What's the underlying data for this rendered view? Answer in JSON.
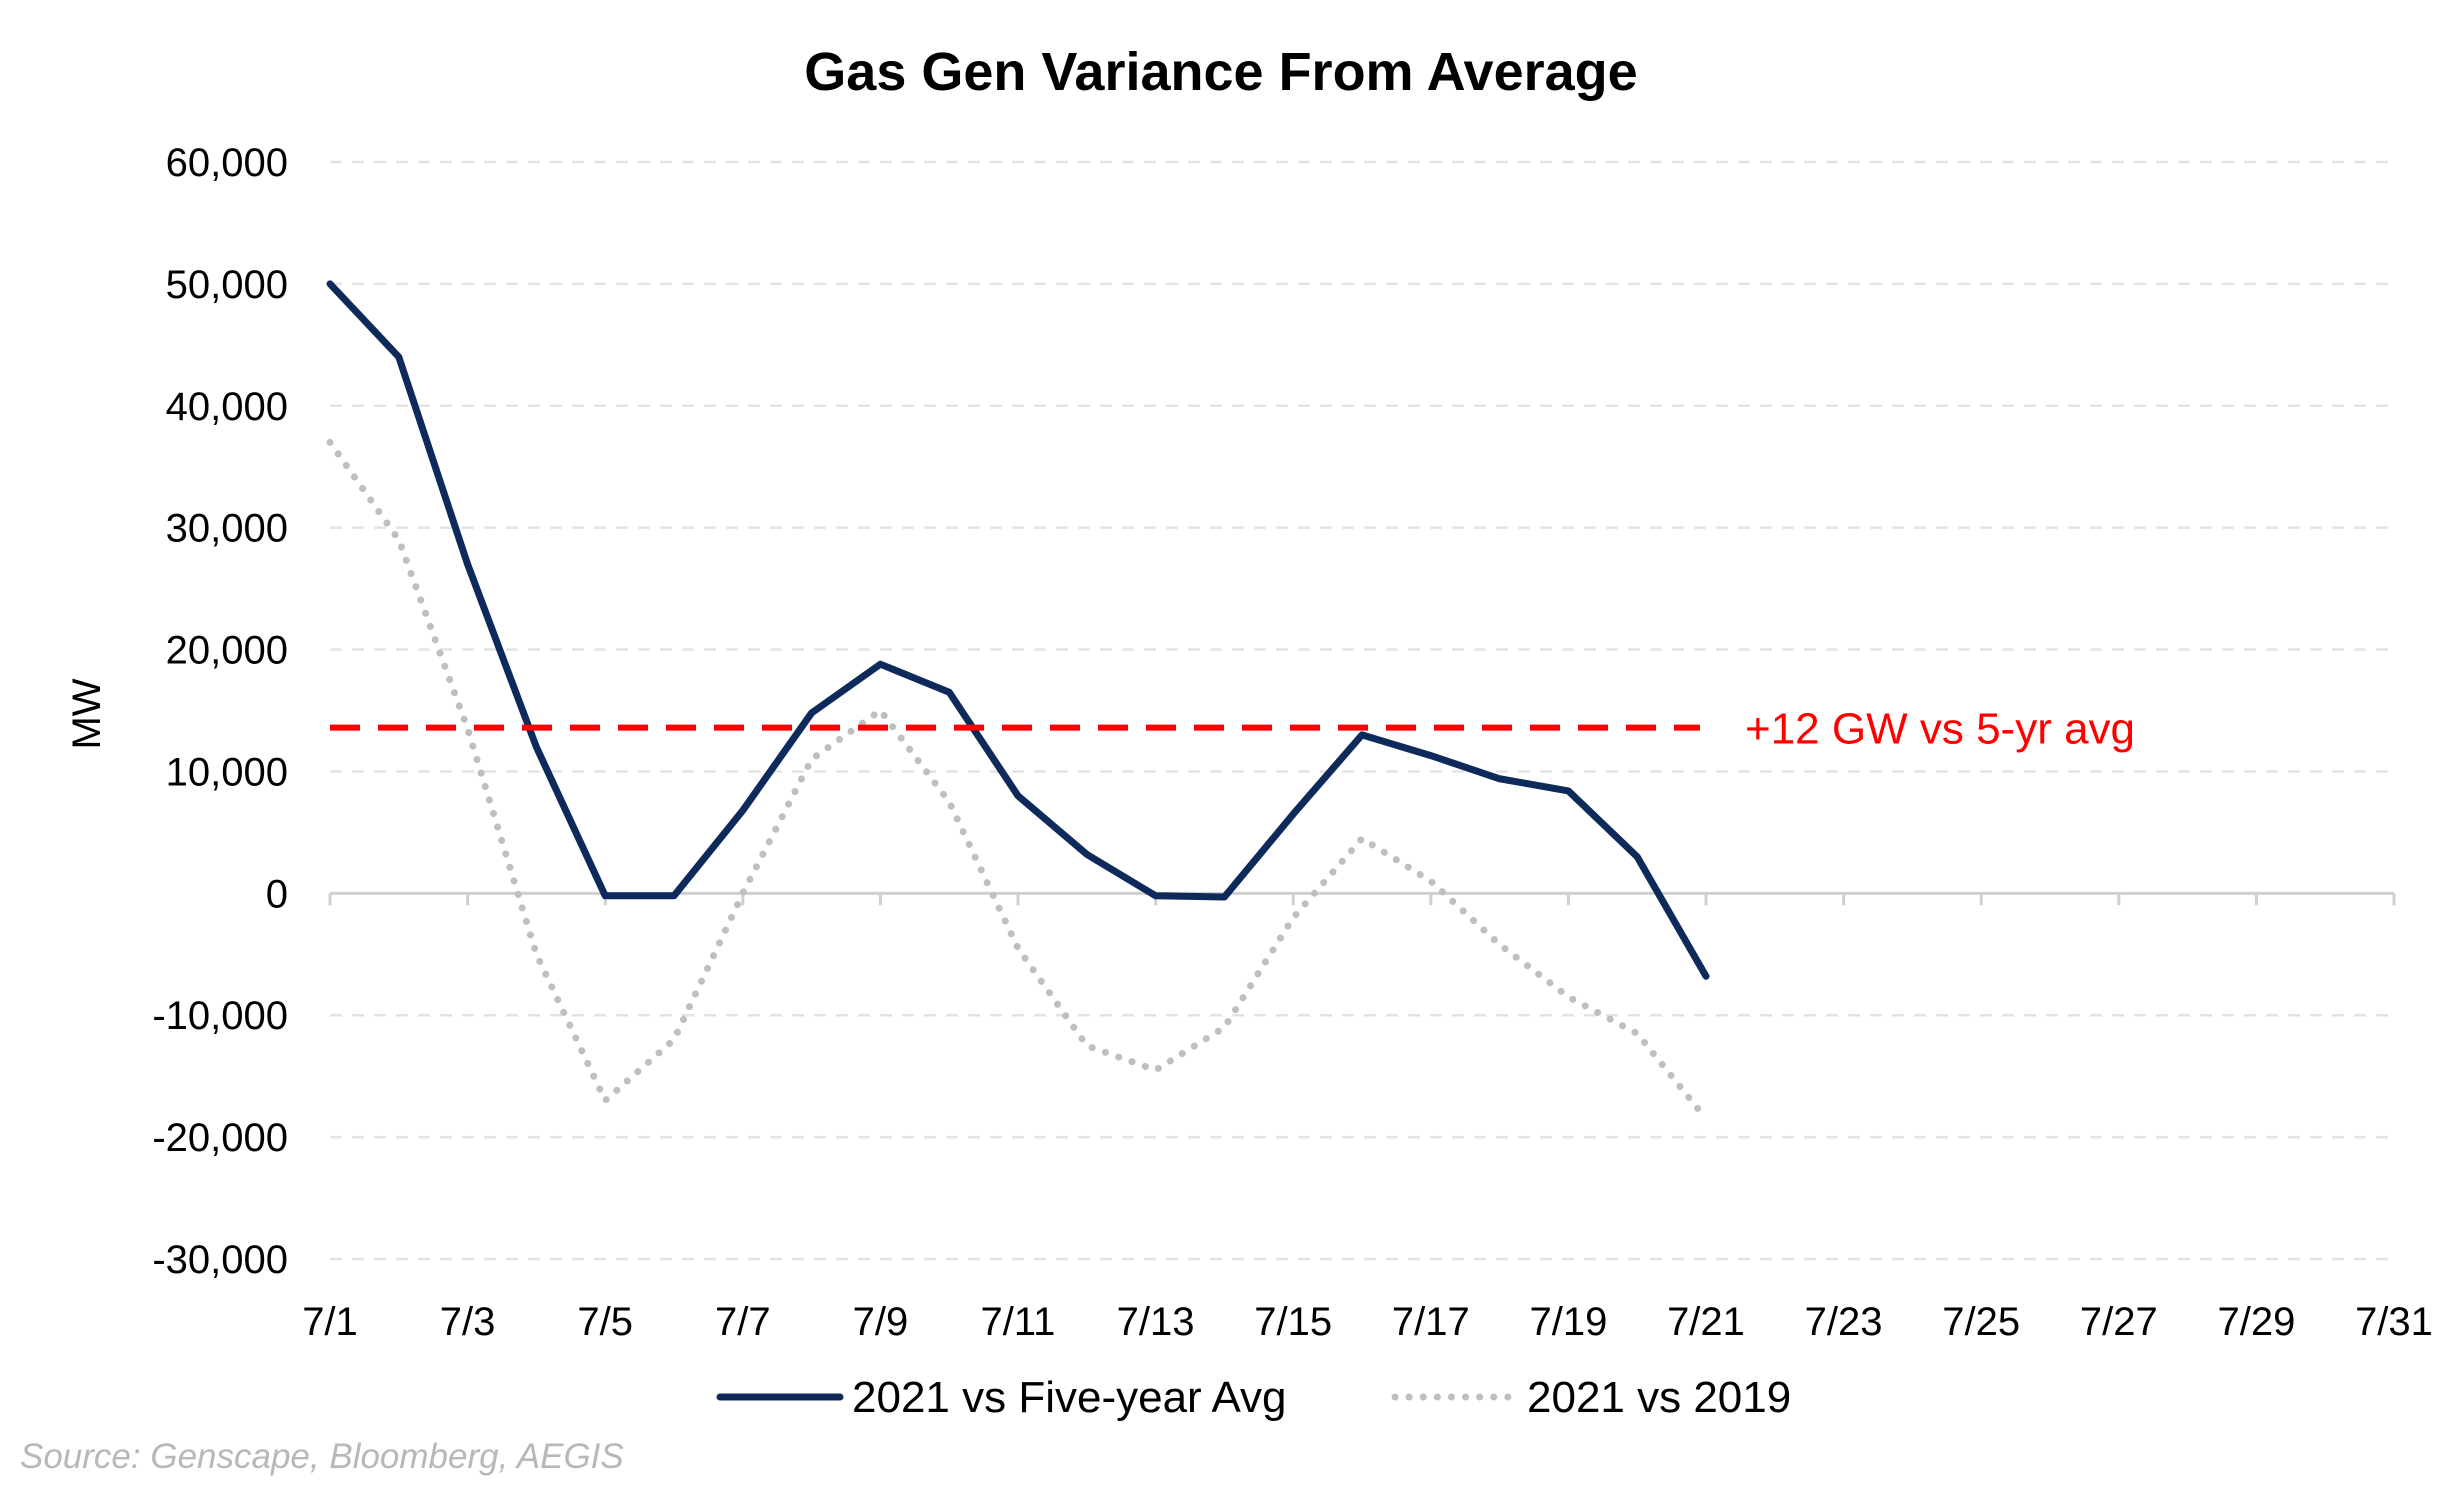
{
  "chart_data": {
    "type": "line",
    "title": "Gas Gen Variance From Average",
    "ylabel": "MW",
    "xlabel": "",
    "ylim": [
      -30000,
      60000
    ],
    "yticks": [
      60000,
      50000,
      40000,
      30000,
      20000,
      10000,
      0,
      -10000,
      -20000,
      -30000
    ],
    "ytick_labels": [
      "60,000",
      "50,000",
      "40,000",
      "30,000",
      "20,000",
      "10,000",
      "0",
      "-10,000",
      "-20,000",
      "-30,000"
    ],
    "xlim": [
      "7/1",
      "7/31"
    ],
    "xtick_labels": [
      "7/1",
      "7/3",
      "7/5",
      "7/7",
      "7/9",
      "7/11",
      "7/13",
      "7/15",
      "7/17",
      "7/19",
      "7/21",
      "7/23",
      "7/25",
      "7/27",
      "7/29",
      "7/31"
    ],
    "grid": true,
    "legend_position": "bottom",
    "x": [
      "7/1",
      "7/2",
      "7/3",
      "7/4",
      "7/5",
      "7/6",
      "7/7",
      "7/8",
      "7/9",
      "7/10",
      "7/11",
      "7/12",
      "7/13",
      "7/14",
      "7/15",
      "7/16",
      "7/17",
      "7/18",
      "7/19",
      "7/20",
      "7/21"
    ],
    "series": [
      {
        "name": "2021 vs Five-year Avg",
        "color": "#0d2a5a",
        "style": "solid",
        "values": [
          50000,
          44000,
          27000,
          12000,
          -200,
          -200,
          6800,
          14800,
          18800,
          16500,
          8000,
          3200,
          -200,
          -300,
          6500,
          13000,
          11300,
          9400,
          8400,
          3000,
          -6800
        ]
      },
      {
        "name": "2021 vs 2019",
        "color": "#bfbfbf",
        "style": "dotted",
        "values": [
          37000,
          29000,
          13500,
          -5000,
          -17000,
          -12000,
          0,
          11000,
          15000,
          7500,
          -4500,
          -12500,
          -14500,
          -11000,
          -2000,
          4500,
          1000,
          -4200,
          -8500,
          -11500,
          -18500
        ]
      }
    ],
    "reference_line": {
      "y": 13600,
      "label": "+12 GW vs 5-yr avg",
      "color": "#ff0000",
      "style": "dashed"
    },
    "source_note": "Source: Genscape, Bloomberg, AEGIS"
  }
}
